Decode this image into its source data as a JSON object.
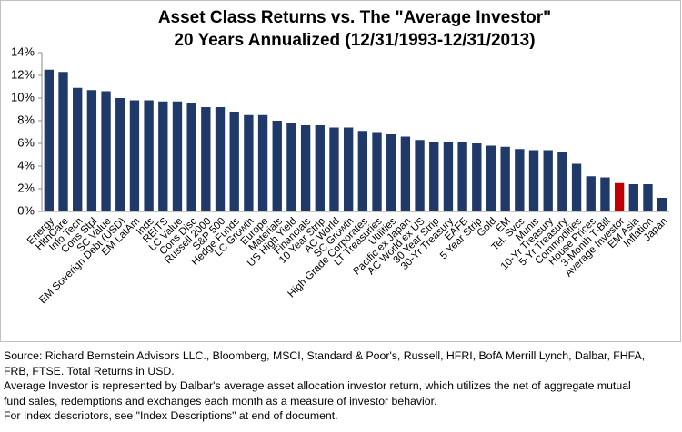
{
  "chart_data": {
    "type": "bar",
    "title": "Asset Class Returns vs. The \"Average Investor\"",
    "subtitle": "20 Years Annualized (12/31/1993-12/31/2013)",
    "categories": [
      "Energy",
      "HlthCare",
      "Info Tech",
      "Cons Stpl",
      "SC Value",
      "EM Soverign Debt (USD)",
      "EM LatAm",
      "Inds",
      "REITS",
      "LC Value",
      "Cons Disc",
      "Russell 2000",
      "S&P 500",
      "Hedge Funds",
      "LC Growth",
      "Europe",
      "Materials",
      "US High Yield",
      "Financials",
      "10 Year Strip",
      "AC World",
      "SC Growth",
      "High Grade Corporates",
      "LT Treasuries",
      "Utilities",
      "Pacific ex Japan",
      "AC World ex US",
      "30 Year Strip",
      "30-Yr Treasury",
      "EAFE",
      "5 Year Strip",
      "Gold",
      "EM",
      "Tel. Svcs",
      "Munis",
      "10-Yr Treasury",
      "5-Yr Treasury",
      "Commodities",
      "House Prices",
      "3-Month T-Bill",
      "Average Investor",
      "EM Asia",
      "Inflation",
      "Japan"
    ],
    "values": [
      12.5,
      12.3,
      10.9,
      10.7,
      10.6,
      10.0,
      9.8,
      9.8,
      9.7,
      9.7,
      9.6,
      9.2,
      9.2,
      8.8,
      8.5,
      8.5,
      8.0,
      7.8,
      7.6,
      7.6,
      7.4,
      7.4,
      7.1,
      7.0,
      6.8,
      6.6,
      6.3,
      6.1,
      6.1,
      6.1,
      6.0,
      5.8,
      5.7,
      5.5,
      5.4,
      5.4,
      5.2,
      4.2,
      3.1,
      3.0,
      2.5,
      2.4,
      2.4,
      1.2
    ],
    "colors": [
      "#1f3a68",
      "#1f3a68",
      "#1f3a68",
      "#1f3a68",
      "#1f3a68",
      "#1f3a68",
      "#1f3a68",
      "#1f3a68",
      "#1f3a68",
      "#1f3a68",
      "#1f3a68",
      "#1f3a68",
      "#1f3a68",
      "#1f3a68",
      "#1f3a68",
      "#1f3a68",
      "#1f3a68",
      "#1f3a68",
      "#1f3a68",
      "#1f3a68",
      "#1f3a68",
      "#1f3a68",
      "#1f3a68",
      "#1f3a68",
      "#1f3a68",
      "#1f3a68",
      "#1f3a68",
      "#1f3a68",
      "#1f3a68",
      "#1f3a68",
      "#1f3a68",
      "#1f3a68",
      "#1f3a68",
      "#1f3a68",
      "#1f3a68",
      "#1f3a68",
      "#1f3a68",
      "#1f3a68",
      "#1f3a68",
      "#1f3a68",
      "#c00000",
      "#1f3a68",
      "#1f3a68",
      "#1f3a68"
    ],
    "ylim": [
      0,
      14
    ],
    "yticks": [
      {
        "value": 0,
        "label": "0%"
      },
      {
        "value": 2,
        "label": "2%"
      },
      {
        "value": 4,
        "label": "4%"
      },
      {
        "value": 6,
        "label": "6%"
      },
      {
        "value": 8,
        "label": "8%"
      },
      {
        "value": 10,
        "label": "10%"
      },
      {
        "value": 12,
        "label": "12%"
      },
      {
        "value": 14,
        "label": "14%"
      }
    ],
    "grid": false
  },
  "footer": [
    "Source: Richard Bernstein Advisors LLC., Bloomberg, MSCI, Standard & Poor's, Russell, HFRI, BofA Merrill Lynch, Dalbar, FHFA,",
    "FRB, FTSE.  Total Returns in USD.",
    "Average Investor is represented by Dalbar's average asset allocation investor return, which utilizes the net of aggregate mutual",
    "fund sales, redemptions and exchanges each month as a measure of investor behavior.",
    "For Index descriptors, see \"Index Descriptions\" at end of document."
  ]
}
